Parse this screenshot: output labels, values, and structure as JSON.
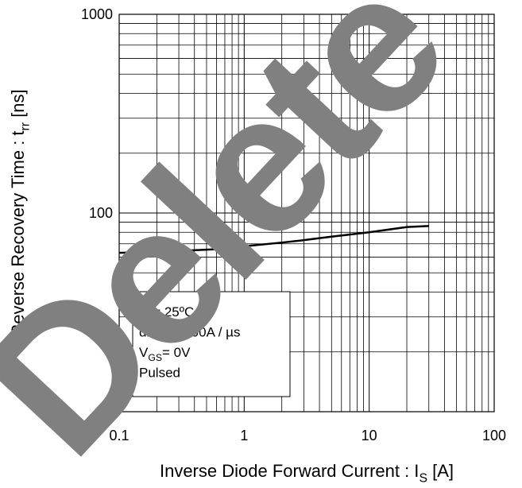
{
  "chart_data": {
    "type": "line",
    "x_label": {
      "text": "Inverse Diode Forward Current : I",
      "sub": "S",
      "after": " [A]"
    },
    "y_label": {
      "text": "Reverse Recovery Time : t",
      "sub": "rr",
      "after": " [ns]"
    },
    "xscale": "log",
    "yscale": "log",
    "grid": true,
    "xlim": [
      0.1,
      100
    ],
    "ylim": [
      10,
      1000
    ],
    "xticks": [
      0.1,
      1,
      10,
      100
    ],
    "yticks": [
      10,
      100,
      1000
    ],
    "series": [
      {
        "color": "#000000",
        "x": [
          0.1,
          0.3,
          0.7,
          1,
          2,
          3,
          5,
          10,
          20,
          30
        ],
        "values": [
          63,
          64.5,
          66,
          68,
          71,
          73,
          76,
          80,
          85,
          86
        ]
      }
    ],
    "annotation": [
      {
        "text": "T",
        "sub": "a",
        "after": "= 25ºC"
      },
      {
        "text": "di / dt= 100A / µs"
      },
      {
        "text": "V",
        "sub": "GS",
        "after": "= 0V"
      },
      {
        "text": "Pulsed"
      }
    ],
    "watermark": "Delete"
  }
}
